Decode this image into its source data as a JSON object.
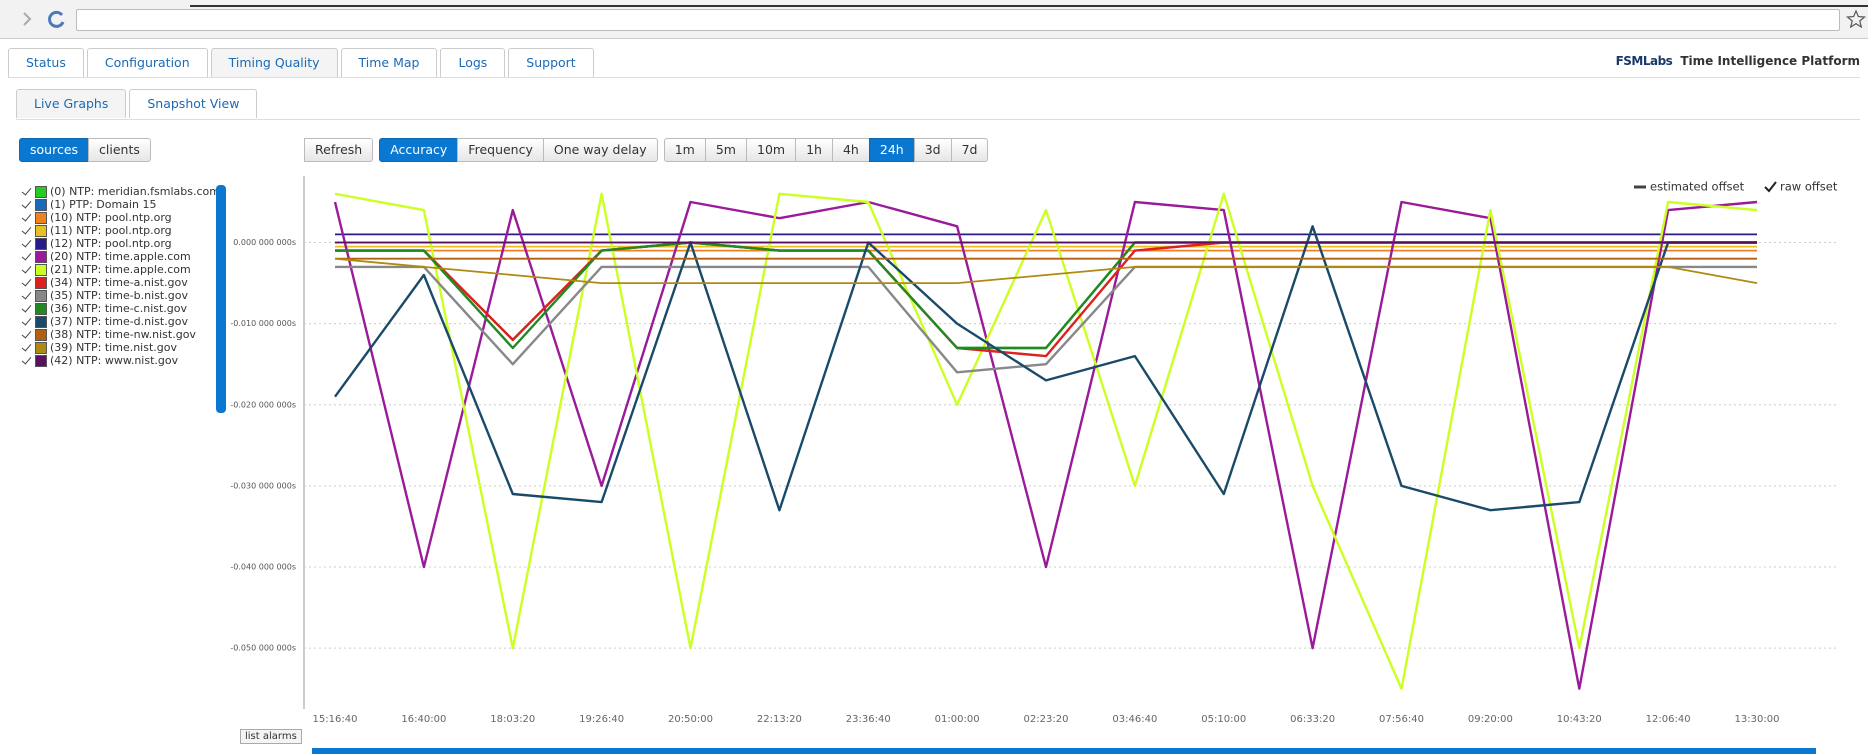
{
  "tabs": [
    "Status",
    "Configuration",
    "Timing Quality",
    "Time Map",
    "Logs",
    "Support"
  ],
  "active_tab": 2,
  "logo": {
    "brand": "FSMLabs",
    "product": "Time Intelligence Platform"
  },
  "subtabs": [
    "Live Graphs",
    "Snapshot View"
  ],
  "active_subtab": 0,
  "view_toggle": [
    "sources",
    "clients"
  ],
  "active_view": 0,
  "refresh": "Refresh",
  "metrics": [
    "Accuracy",
    "Frequency",
    "One way delay"
  ],
  "active_metric": 0,
  "ranges": [
    "1m",
    "5m",
    "10m",
    "1h",
    "4h",
    "24h",
    "3d",
    "7d"
  ],
  "active_range": 5,
  "list_alarms": "list alarms",
  "chart_data": {
    "type": "line",
    "categories": [
      "15:16:40",
      "16:40:00",
      "18:03:20",
      "19:26:40",
      "20:50:00",
      "22:13:20",
      "23:36:40",
      "01:00:00",
      "02:23:20",
      "03:46:40",
      "05:10:00",
      "06:33:20",
      "07:56:40",
      "09:20:00",
      "10:43:20",
      "12:06:40",
      "13:30:00"
    ],
    "ylim": [
      -0.0575,
      0.0082
    ],
    "yticks": [
      {
        "value": 0,
        "label": "0.000 000 000s"
      },
      {
        "value": -0.01,
        "label": "-0.010 000 000s"
      },
      {
        "value": -0.02,
        "label": "-0.020 000 000s"
      },
      {
        "value": -0.03,
        "label": "-0.030 000 000s"
      },
      {
        "value": -0.04,
        "label": "-0.040 000 000s"
      },
      {
        "value": -0.05,
        "label": "-0.050 000 000s"
      }
    ],
    "grid": true,
    "offset_legend": [
      "estimated offset",
      "raw offset"
    ],
    "series": [
      {
        "name": "(0) NTP: meridian.fsmlabs.com",
        "color": "#22cc22",
        "values": [
          -0.001,
          -0.001,
          -0.012,
          -0.001,
          0,
          -0.001,
          -0.001,
          -0.013,
          -0.013,
          0,
          0,
          0,
          0,
          0,
          0,
          0,
          0
        ]
      },
      {
        "name": "(1) PTP: Domain 15",
        "color": "#1a6ab8",
        "values": [
          0,
          0,
          0,
          0,
          0,
          0,
          0,
          0,
          0,
          0,
          0,
          0,
          0,
          0,
          0,
          0,
          0
        ]
      },
      {
        "name": "(10) NTP: pool.ntp.org",
        "color": "#f08020",
        "values": [
          -0.001,
          -0.001,
          -0.001,
          -0.001,
          -0.001,
          -0.001,
          -0.001,
          -0.001,
          -0.001,
          -0.001,
          -0.001,
          -0.001,
          -0.001,
          -0.001,
          -0.001,
          -0.001,
          -0.001
        ]
      },
      {
        "name": "(11) NTP: pool.ntp.org",
        "color": "#e8c020",
        "values": [
          -0.0005,
          -0.0005,
          -0.0005,
          -0.0005,
          -0.0005,
          -0.0005,
          -0.0005,
          -0.0005,
          -0.0005,
          -0.0005,
          -0.0005,
          -0.0005,
          -0.0005,
          -0.0005,
          -0.0005,
          -0.0005,
          -0.0005
        ]
      },
      {
        "name": "(12) NTP: pool.ntp.org",
        "color": "#2a1a8a",
        "values": [
          0.001,
          0.001,
          0.001,
          0.001,
          0.001,
          0.001,
          0.001,
          0.001,
          0.001,
          0.001,
          0.001,
          0.001,
          0.001,
          0.001,
          0.001,
          0.001,
          0.001
        ]
      },
      {
        "name": "(20) NTP: time.apple.com",
        "color": "#9a1a9a",
        "values": [
          0.005,
          -0.04,
          0.004,
          -0.03,
          0.005,
          0.003,
          0.005,
          0.002,
          -0.04,
          0.005,
          0.004,
          -0.05,
          0.005,
          0.003,
          -0.055,
          0.004,
          0.005
        ]
      },
      {
        "name": "(21) NTP: time.apple.com",
        "color": "#ccff22",
        "values": [
          0.006,
          0.004,
          -0.05,
          0.006,
          -0.05,
          0.006,
          0.005,
          -0.02,
          0.004,
          -0.03,
          0.006,
          -0.03,
          -0.055,
          0.004,
          -0.05,
          0.005,
          0.004
        ]
      },
      {
        "name": "(34) NTP: time-a.nist.gov",
        "color": "#dd2020",
        "values": [
          -0.001,
          -0.001,
          -0.012,
          -0.001,
          0,
          -0.001,
          -0.001,
          -0.013,
          -0.014,
          -0.001,
          0,
          0,
          0,
          0,
          0,
          0,
          0
        ]
      },
      {
        "name": "(35) NTP: time-b.nist.gov",
        "color": "#888888",
        "values": [
          -0.003,
          -0.003,
          -0.015,
          -0.003,
          -0.003,
          -0.003,
          -0.003,
          -0.016,
          -0.015,
          -0.003,
          -0.003,
          -0.003,
          -0.003,
          -0.003,
          -0.003,
          -0.003,
          -0.003
        ]
      },
      {
        "name": "(36) NTP: time-c.nist.gov",
        "color": "#228822",
        "values": [
          -0.001,
          -0.001,
          -0.013,
          -0.001,
          0,
          -0.001,
          -0.001,
          -0.013,
          -0.013,
          0,
          0,
          0,
          0,
          0,
          0,
          0,
          0
        ]
      },
      {
        "name": "(37) NTP: time-d.nist.gov",
        "color": "#1a4a6a",
        "values": [
          -0.019,
          -0.004,
          -0.031,
          -0.032,
          0,
          -0.033,
          0,
          -0.01,
          -0.017,
          -0.014,
          -0.031,
          0.002,
          -0.03,
          -0.033,
          -0.032,
          0,
          0
        ]
      },
      {
        "name": "(38) NTP: time-nw.nist.gov",
        "color": "#b06010",
        "values": [
          -0.002,
          -0.002,
          -0.002,
          -0.002,
          -0.002,
          -0.002,
          -0.002,
          -0.002,
          -0.002,
          -0.002,
          -0.002,
          -0.002,
          -0.002,
          -0.002,
          -0.002,
          -0.002,
          -0.002
        ]
      },
      {
        "name": "(39) NTP: time.nist.gov",
        "color": "#b08a10",
        "values": [
          -0.002,
          -0.003,
          -0.004,
          -0.005,
          -0.005,
          -0.005,
          -0.005,
          -0.005,
          -0.004,
          -0.003,
          -0.003,
          -0.003,
          -0.003,
          -0.003,
          -0.003,
          -0.003,
          -0.005
        ]
      },
      {
        "name": "(42) NTP: www.nist.gov",
        "color": "#5a1060",
        "values": [
          0,
          0,
          0,
          0,
          0,
          0,
          0,
          0,
          0,
          0,
          0,
          0,
          0,
          0,
          0,
          0,
          0
        ]
      }
    ]
  }
}
